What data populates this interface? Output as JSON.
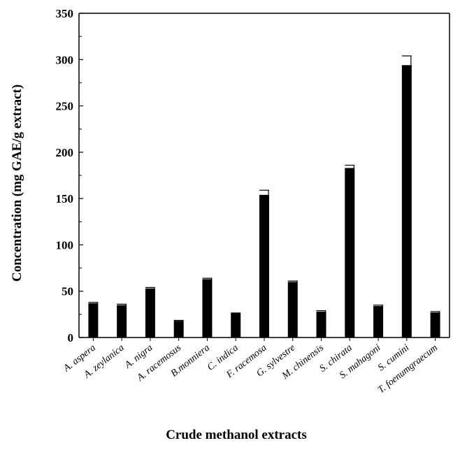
{
  "chart_data": {
    "type": "bar",
    "title": "",
    "xlabel": "Crude methanol extracts",
    "ylabel": "Concentration (mg GAE/g extract)",
    "ylim": [
      0,
      350
    ],
    "yticks": [
      "0",
      "50",
      "100",
      "150",
      "200",
      "250",
      "300",
      "350"
    ],
    "grid": false,
    "bar_color": "#000000",
    "categories": [
      "A. aspera",
      "A. zeylanica",
      "A. nigra",
      "A. racemosus",
      "B.monniera",
      "C. indica",
      "F. racemosa",
      "G. sylvestre",
      "M. chinensis",
      "S. chirata",
      "S. mahagoni",
      "S. cumini",
      "T. foenumgraecum"
    ],
    "values": [
      37,
      35,
      53,
      18,
      63,
      26,
      154,
      60,
      28,
      183,
      34,
      294,
      27
    ],
    "errors": [
      1,
      1,
      1,
      0.5,
      1,
      0.5,
      5,
      1,
      1,
      3,
      1,
      10,
      1
    ]
  }
}
